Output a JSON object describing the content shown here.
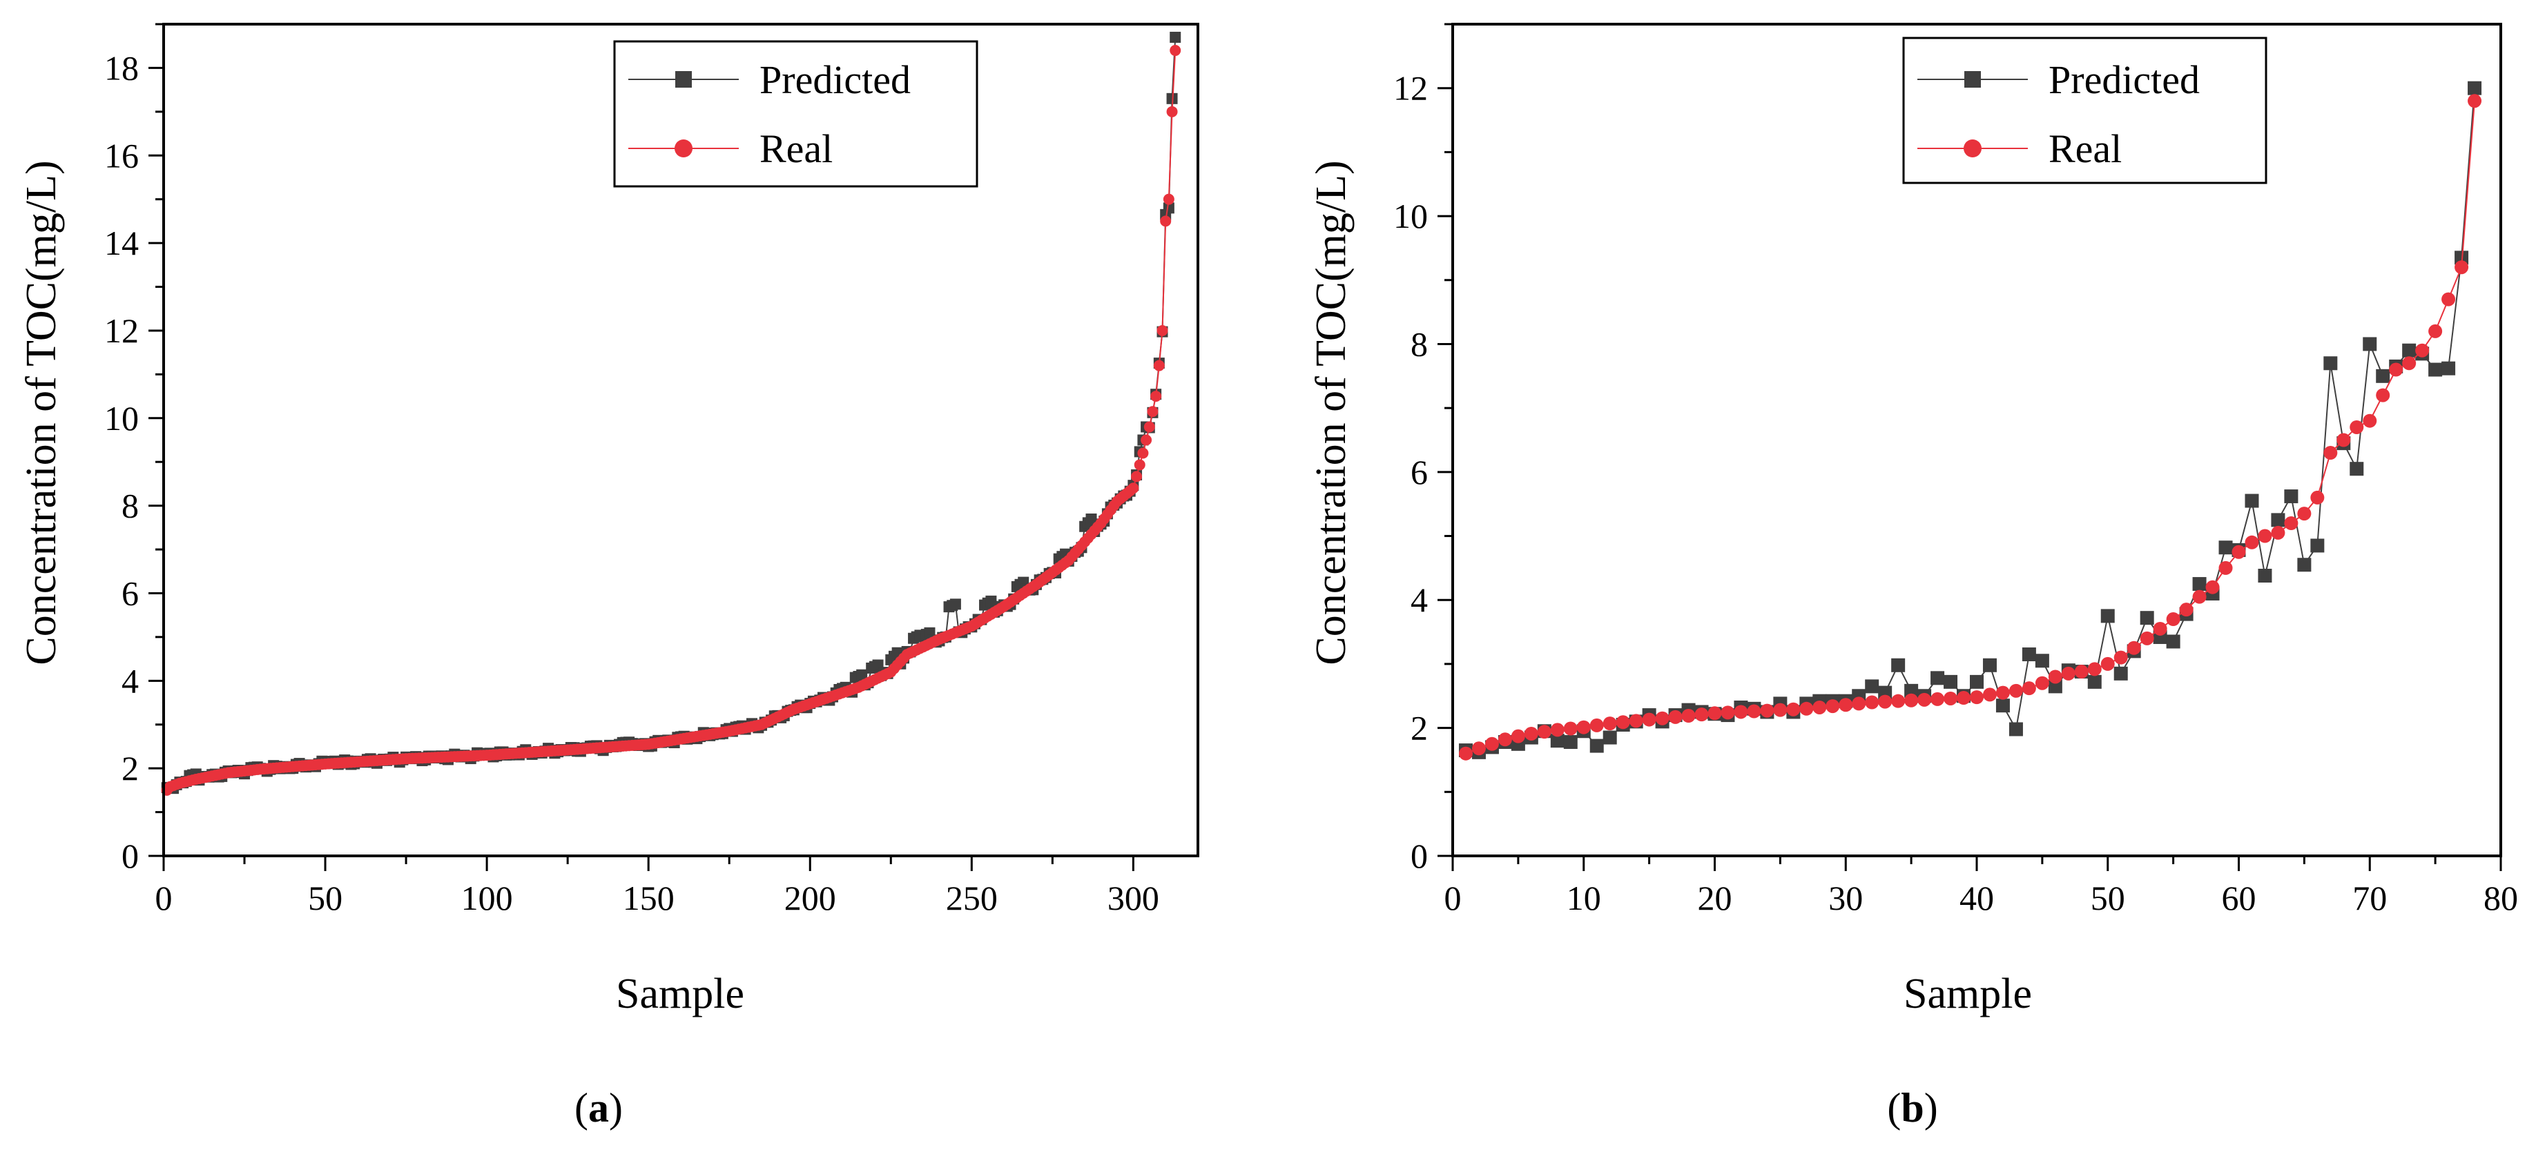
{
  "figure": {
    "panel_a_label": "a",
    "panel_b_label": "b"
  },
  "chart_data": [
    {
      "type": "line",
      "panel": "a",
      "xlabel": "Sample",
      "ylabel": "Concentration of TOC(mg/L)",
      "xlim": [
        0,
        320
      ],
      "ylim": [
        0,
        19
      ],
      "xticks": [
        0,
        50,
        100,
        150,
        200,
        250,
        300
      ],
      "yticks": [
        0,
        2,
        4,
        6,
        8,
        10,
        12,
        14,
        16,
        18
      ],
      "legend_position": "top-right",
      "colors": {
        "Predicted": "#3f3f3f",
        "Real": "#e8323c"
      },
      "curve": {
        "n_samples": 312,
        "anchors": [
          [
            1,
            1.5
          ],
          [
            2,
            1.58
          ],
          [
            5,
            1.66
          ],
          [
            10,
            1.75
          ],
          [
            20,
            1.9
          ],
          [
            30,
            1.98
          ],
          [
            50,
            2.1
          ],
          [
            75,
            2.22
          ],
          [
            100,
            2.3
          ],
          [
            125,
            2.42
          ],
          [
            150,
            2.55
          ],
          [
            175,
            2.85
          ],
          [
            185,
            3.0
          ],
          [
            195,
            3.35
          ],
          [
            205,
            3.6
          ],
          [
            215,
            3.85
          ],
          [
            225,
            4.2
          ],
          [
            230,
            4.6
          ],
          [
            240,
            4.95
          ],
          [
            250,
            5.25
          ],
          [
            260,
            5.7
          ],
          [
            270,
            6.2
          ],
          [
            280,
            6.75
          ],
          [
            290,
            7.6
          ],
          [
            295,
            8.1
          ],
          [
            300,
            8.4
          ],
          [
            303,
            9.2
          ],
          [
            305,
            9.8
          ],
          [
            307,
            10.5
          ],
          [
            308,
            11.2
          ],
          [
            309,
            12.0
          ],
          [
            310,
            14.5
          ],
          [
            311,
            15.0
          ],
          [
            312,
            17.0
          ],
          [
            313,
            18.4
          ]
        ],
        "predicted_deviation": [
          [
            9,
            0.12
          ],
          [
            28,
            0.06
          ],
          [
            52,
            0.05
          ],
          [
            100,
            0.04
          ],
          [
            133,
            0.05
          ],
          [
            143,
            0.08
          ],
          [
            160,
            0.05
          ],
          [
            178,
            0.06
          ],
          [
            210,
            0.1
          ],
          [
            215,
            0.25
          ],
          [
            220,
            0.3
          ],
          [
            226,
            0.28
          ],
          [
            233,
            0.3
          ],
          [
            236,
            0.25
          ],
          [
            244,
            0.65
          ],
          [
            255,
            0.3
          ],
          [
            265,
            0.25
          ],
          [
            278,
            0.2
          ],
          [
            286,
            0.35
          ],
          [
            303,
            0.3
          ],
          [
            311,
            0.15
          ],
          [
            312,
            -0.2
          ],
          [
            313,
            0.3
          ]
        ]
      }
    },
    {
      "type": "line",
      "panel": "b",
      "xlabel": "Sample",
      "ylabel": "Concentration of TOC(mg/L)",
      "xlim": [
        0,
        80
      ],
      "ylim": [
        0,
        13
      ],
      "xticks": [
        0,
        10,
        20,
        30,
        40,
        50,
        60,
        70,
        80
      ],
      "yticks": [
        0,
        2,
        4,
        6,
        8,
        10,
        12
      ],
      "legend_position": "top-right",
      "colors": {
        "Predicted": "#3f3f3f",
        "Real": "#e8323c"
      },
      "x": [
        1,
        2,
        3,
        4,
        5,
        6,
        7,
        8,
        9,
        10,
        11,
        12,
        13,
        14,
        15,
        16,
        17,
        18,
        19,
        20,
        21,
        22,
        23,
        24,
        25,
        26,
        27,
        28,
        29,
        30,
        31,
        32,
        33,
        34,
        35,
        36,
        37,
        38,
        39,
        40,
        41,
        42,
        43,
        44,
        45,
        46,
        47,
        48,
        49,
        50,
        51,
        52,
        53,
        54,
        55,
        56,
        57,
        58,
        59,
        60,
        61,
        62,
        63,
        64,
        65,
        66,
        67,
        68,
        69,
        70,
        71,
        72,
        73,
        74,
        75,
        76,
        77,
        78
      ],
      "series": [
        {
          "name": "Predicted",
          "values": [
            1.65,
            1.62,
            1.7,
            1.78,
            1.75,
            1.85,
            1.95,
            1.8,
            1.78,
            1.95,
            1.72,
            1.85,
            2.05,
            2.1,
            2.2,
            2.1,
            2.2,
            2.28,
            2.25,
            2.22,
            2.2,
            2.32,
            2.3,
            2.25,
            2.38,
            2.25,
            2.38,
            2.42,
            2.42,
            2.42,
            2.5,
            2.65,
            2.55,
            2.98,
            2.58,
            2.5,
            2.78,
            2.72,
            2.5,
            2.72,
            2.98,
            2.35,
            1.98,
            3.15,
            3.05,
            2.65,
            2.9,
            2.88,
            2.72,
            3.75,
            2.85,
            3.2,
            3.72,
            3.42,
            3.35,
            3.78,
            4.25,
            4.1,
            4.82,
            4.78,
            5.55,
            4.38,
            5.25,
            5.62,
            4.55,
            4.85,
            7.7,
            6.45,
            6.05,
            8.0,
            7.5,
            7.65,
            7.9,
            7.85,
            7.6,
            7.62,
            9.35,
            12.0
          ]
        },
        {
          "name": "Real",
          "values": [
            1.6,
            1.68,
            1.75,
            1.82,
            1.87,
            1.91,
            1.94,
            1.97,
            1.99,
            2.01,
            2.04,
            2.07,
            2.09,
            2.11,
            2.13,
            2.15,
            2.17,
            2.19,
            2.21,
            2.23,
            2.24,
            2.25,
            2.26,
            2.27,
            2.28,
            2.29,
            2.3,
            2.32,
            2.34,
            2.36,
            2.38,
            2.4,
            2.41,
            2.42,
            2.43,
            2.44,
            2.45,
            2.46,
            2.47,
            2.48,
            2.52,
            2.55,
            2.58,
            2.62,
            2.7,
            2.8,
            2.85,
            2.88,
            2.92,
            3.0,
            3.1,
            3.25,
            3.4,
            3.55,
            3.7,
            3.85,
            4.05,
            4.2,
            4.5,
            4.75,
            4.9,
            5.0,
            5.05,
            5.2,
            5.35,
            5.6,
            6.3,
            6.5,
            6.7,
            6.8,
            7.2,
            7.6,
            7.7,
            7.9,
            8.2,
            8.7,
            9.2,
            11.8
          ]
        }
      ]
    }
  ]
}
